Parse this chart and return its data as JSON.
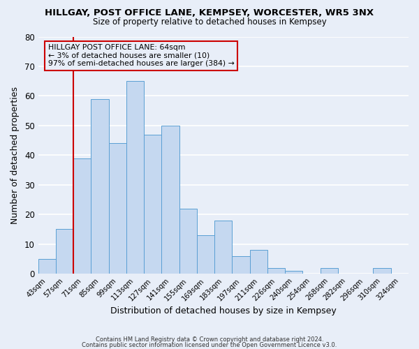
{
  "title": "HILLGAY, POST OFFICE LANE, KEMPSEY, WORCESTER, WR5 3NX",
  "subtitle": "Size of property relative to detached houses in Kempsey",
  "xlabel": "Distribution of detached houses by size in Kempsey",
  "ylabel": "Number of detached properties",
  "bin_labels": [
    "43sqm",
    "57sqm",
    "71sqm",
    "85sqm",
    "99sqm",
    "113sqm",
    "127sqm",
    "141sqm",
    "155sqm",
    "169sqm",
    "183sqm",
    "197sqm",
    "211sqm",
    "226sqm",
    "240sqm",
    "254sqm",
    "268sqm",
    "282sqm",
    "296sqm",
    "310sqm",
    "324sqm"
  ],
  "bar_values": [
    5,
    15,
    39,
    59,
    44,
    65,
    47,
    50,
    22,
    13,
    18,
    6,
    8,
    2,
    1,
    0,
    2,
    0,
    0,
    2,
    0
  ],
  "bar_color": "#c5d8f0",
  "bar_edge_color": "#5a9fd4",
  "ylim": [
    0,
    80
  ],
  "yticks": [
    0,
    10,
    20,
    30,
    40,
    50,
    60,
    70,
    80
  ],
  "vline_x": 1.5,
  "vline_color": "#cc0000",
  "annotation_line1": "HILLGAY POST OFFICE LANE: 64sqm",
  "annotation_line2": "← 3% of detached houses are smaller (10)",
  "annotation_line3": "97% of semi-detached houses are larger (384) →",
  "annotation_box_color": "#cc0000",
  "footer_line1": "Contains HM Land Registry data © Crown copyright and database right 2024.",
  "footer_line2": "Contains public sector information licensed under the Open Government Licence v3.0.",
  "background_color": "#e8eef8",
  "grid_color": "#ffffff"
}
